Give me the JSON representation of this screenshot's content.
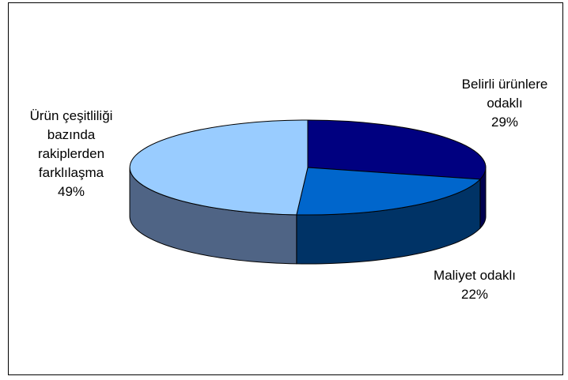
{
  "chart_data": {
    "type": "pie",
    "title": "",
    "style": "3d",
    "series": [
      {
        "values": [
          29,
          22,
          49
        ],
        "categories": [
          "Belirli ürünlere odaklı",
          "Maliyet odaklı",
          "Ürün çeşitliliği bazında rakiplerden farklılaşma"
        ]
      }
    ],
    "slices": [
      {
        "label_lines": [
          "Belirli ürünlere",
          "odaklı"
        ],
        "percent_label": "29%",
        "value": 29,
        "top_color": "#000080",
        "side_color": "#000050"
      },
      {
        "label_lines": [
          "Maliyet odaklı"
        ],
        "percent_label": "22%",
        "value": 22,
        "top_color": "#0066CC",
        "side_color": "#003366"
      },
      {
        "label_lines": [
          "Ürün çeşitliliği",
          "bazında",
          "rakiplerden",
          "farklılaşma"
        ],
        "percent_label": "49%",
        "value": 49,
        "top_color": "#99CCFF",
        "side_color": "#4F6485"
      }
    ],
    "legend": "none"
  }
}
